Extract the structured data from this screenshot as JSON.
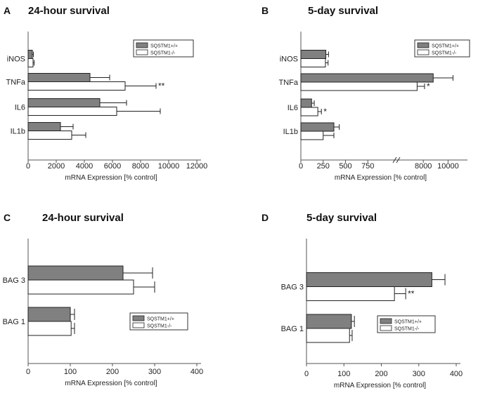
{
  "chart_data": [
    {
      "type": "bar",
      "orientation": "horizontal",
      "panel": "A",
      "title": "24-hour survival",
      "xlabel": "mRNA Expression [% control]",
      "ylabel": "",
      "xlim": [
        0,
        12000
      ],
      "xticks": [
        "0",
        "2000",
        "4000",
        "6000",
        "8000",
        "10000",
        "12000"
      ],
      "categories": [
        "iNOS",
        "TNFa",
        "IL6",
        "IL1b"
      ],
      "series": [
        {
          "name": "SQSTM1+/+",
          "fill": "#808080",
          "values": [
            300,
            4400,
            5100,
            2300
          ],
          "errors": [
            80,
            1400,
            1900,
            900
          ]
        },
        {
          "name": "SQSTM1-/-",
          "fill": "#ffffff",
          "values": [
            350,
            6900,
            6300,
            3100
          ],
          "errors": [
            80,
            2200,
            3100,
            1000
          ]
        }
      ],
      "annotations": [
        {
          "category": "TNFa",
          "series": 1,
          "text": "**"
        }
      ],
      "legend": "top-right"
    },
    {
      "type": "bar",
      "orientation": "horizontal",
      "panel": "B",
      "title": "5-day survival",
      "xlabel": "mRNA Expression [% control]",
      "ylabel": "",
      "axis_break": true,
      "xlim_low": [
        0,
        1000
      ],
      "xlim_high": [
        6000,
        11000
      ],
      "xticks": [
        "0",
        "250",
        "500",
        "750",
        "8000",
        "10000"
      ],
      "categories": [
        "iNOS",
        "TNFa",
        "IL6",
        "IL1b"
      ],
      "series": [
        {
          "name": "SQSTM1+/+",
          "fill": "#808080",
          "values": [
            280,
            8800,
            120,
            370
          ],
          "errors": [
            30,
            1600,
            30,
            60
          ]
        },
        {
          "name": "SQSTM1-/-",
          "fill": "#ffffff",
          "values": [
            275,
            7500,
            190,
            250
          ],
          "errors": [
            30,
            600,
            40,
            120
          ]
        }
      ],
      "annotations": [
        {
          "category": "TNFa",
          "series": 1,
          "text": "*"
        },
        {
          "category": "IL6",
          "series": 1,
          "text": "*"
        }
      ],
      "legend": "top-right"
    },
    {
      "type": "bar",
      "orientation": "horizontal",
      "panel": "C",
      "title": "24-hour survival",
      "xlabel": "mRNA Expression [% control]",
      "ylabel": "",
      "xlim": [
        0,
        400
      ],
      "xticks": [
        "0",
        "100",
        "200",
        "300",
        "400"
      ],
      "categories": [
        "BAG 3",
        "BAG 1"
      ],
      "series": [
        {
          "name": "SQSTM1+/+",
          "fill": "#808080",
          "values": [
            225,
            100
          ],
          "errors": [
            70,
            10
          ]
        },
        {
          "name": "SQSTM1-/-",
          "fill": "#ffffff",
          "values": [
            250,
            102
          ],
          "errors": [
            50,
            8
          ]
        }
      ],
      "annotations": [],
      "legend": "bottom-right"
    },
    {
      "type": "bar",
      "orientation": "horizontal",
      "panel": "D",
      "title": "5-day survival",
      "xlabel": "mRNA Expression [% control]",
      "ylabel": "",
      "xlim": [
        0,
        400
      ],
      "xticks": [
        "0",
        "100",
        "200",
        "300",
        "400"
      ],
      "categories": [
        "BAG 3",
        "BAG 1"
      ],
      "series": [
        {
          "name": "SQSTM1+/+",
          "fill": "#808080",
          "values": [
            335,
            120
          ],
          "errors": [
            35,
            8
          ]
        },
        {
          "name": "SQSTM1-/-",
          "fill": "#ffffff",
          "values": [
            235,
            115
          ],
          "errors": [
            30,
            7
          ]
        }
      ],
      "annotations": [
        {
          "category": "BAG 3",
          "series": 1,
          "text": "**"
        }
      ],
      "legend": "bottom-right"
    }
  ]
}
